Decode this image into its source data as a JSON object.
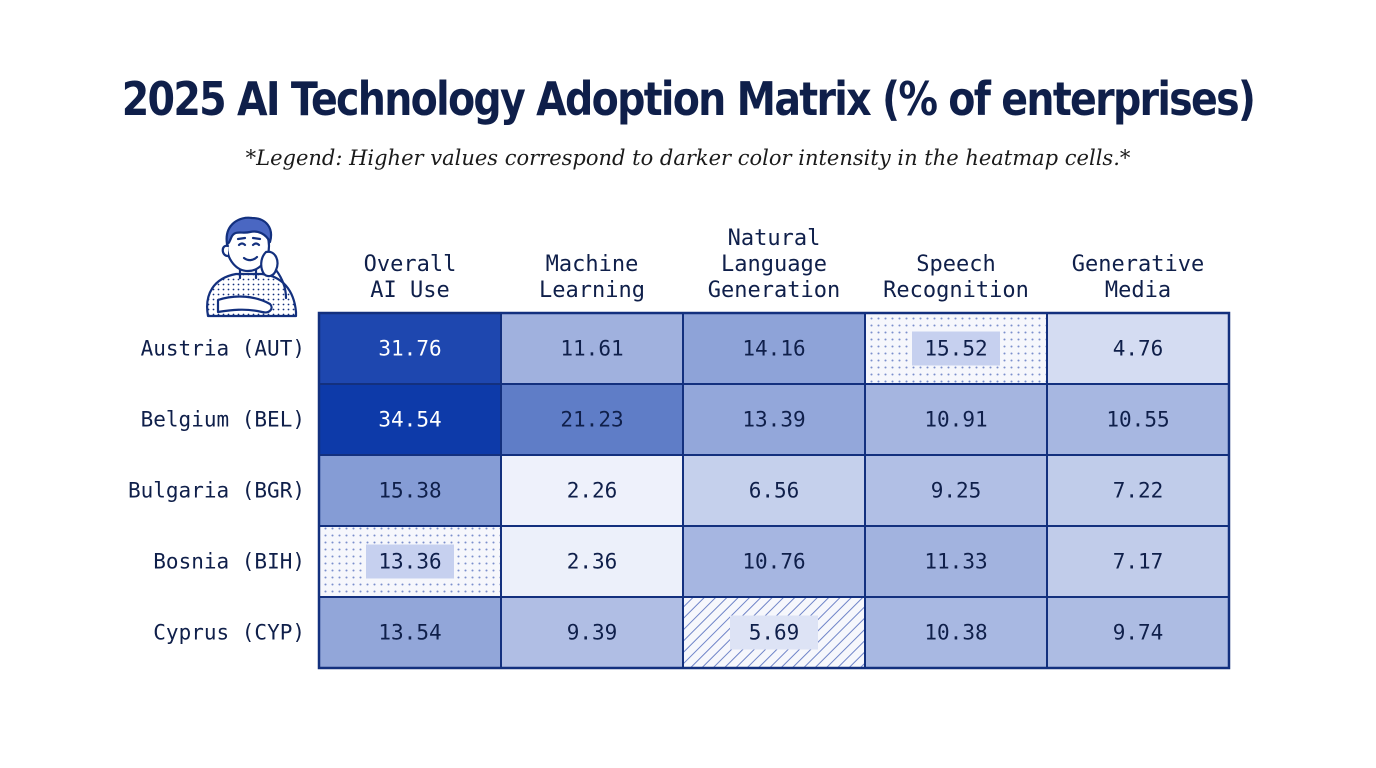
{
  "title": "2025 AI Technology Adoption Matrix (% of enterprises)",
  "subtitle": "*Legend: Higher values correspond to darker color intensity in the heatmap cells.*",
  "colors": {
    "low": "#eef1fb",
    "high": "#0d3aa9",
    "grid": "#13307e",
    "text_dark": "#0f1f4a",
    "text_light": "#ffffff"
  },
  "chart_data": {
    "type": "heatmap",
    "title": "2025 AI Technology Adoption Matrix (% of enterprises)",
    "columns": [
      [
        "Overall",
        "AI Use"
      ],
      [
        "Machine",
        "Learning"
      ],
      [
        "Natural",
        "Language",
        "Generation"
      ],
      [
        "Speech",
        "Recognition"
      ],
      [
        "Generative",
        "Media"
      ]
    ],
    "rows": [
      "Austria (AUT)",
      "Belgium (BEL)",
      "Bulgaria (BGR)",
      "Bosnia (BIH)",
      "Cyprus (CYP)"
    ],
    "values": [
      [
        31.76,
        11.61,
        14.16,
        15.52,
        4.76
      ],
      [
        34.54,
        21.23,
        13.39,
        10.91,
        10.55
      ],
      [
        15.38,
        2.26,
        6.56,
        9.25,
        7.22
      ],
      [
        13.36,
        2.36,
        10.76,
        11.33,
        7.17
      ],
      [
        13.54,
        9.39,
        5.69,
        10.38,
        9.74
      ]
    ],
    "display_values": [
      [
        "31.76",
        "11.61",
        "14.16",
        "15.52",
        "4.76"
      ],
      [
        "34.54",
        "21.23",
        "13.39",
        "10.91",
        "10.55"
      ],
      [
        "15.38",
        "2.26",
        "6.56",
        "9.25",
        "7.22"
      ],
      [
        "13.36",
        "2.36",
        "10.76",
        "11.33",
        "7.17"
      ],
      [
        "13.54",
        "9.39",
        "5.69",
        "10.38",
        "9.74"
      ]
    ],
    "highlighted_cells": [
      {
        "row": 0,
        "col": 3,
        "pattern": "dots"
      },
      {
        "row": 3,
        "col": 0,
        "pattern": "dots"
      },
      {
        "row": 4,
        "col": 2,
        "pattern": "hatch"
      }
    ],
    "grid": true,
    "legend_placement": "below-title"
  }
}
